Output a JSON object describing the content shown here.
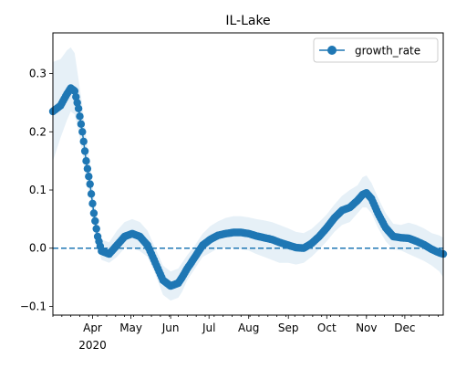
{
  "chart_data": {
    "type": "line",
    "title": "IL-Lake",
    "xlabel": "",
    "ylabel": "",
    "x_range": [
      "2020-03-01",
      "2020-12-31"
    ],
    "ylim": [
      -0.115,
      0.37
    ],
    "x_ticks": [
      {
        "date": "2020-04-01",
        "label": "Apr",
        "sublabel": "2020"
      },
      {
        "date": "2020-05-01",
        "label": "May"
      },
      {
        "date": "2020-06-01",
        "label": "Jun"
      },
      {
        "date": "2020-07-01",
        "label": "Jul"
      },
      {
        "date": "2020-08-01",
        "label": "Aug"
      },
      {
        "date": "2020-09-01",
        "label": "Sep"
      },
      {
        "date": "2020-10-01",
        "label": "Oct"
      },
      {
        "date": "2020-11-01",
        "label": "Nov"
      },
      {
        "date": "2020-12-01",
        "label": "Dec"
      }
    ],
    "y_ticks": [
      {
        "value": 0.3,
        "label": "0.3"
      },
      {
        "value": 0.2,
        "label": "0.2"
      },
      {
        "value": 0.1,
        "label": "0.1"
      },
      {
        "value": 0.0,
        "label": "0.0"
      },
      {
        "value": -0.1,
        "label": "−0.1"
      }
    ],
    "grid": false,
    "legend": {
      "position": "top-right",
      "entries": [
        "growth_rate"
      ]
    },
    "reference_line": {
      "y": 0.0,
      "style": "dashed"
    },
    "colors": {
      "series": "#1f77b4",
      "band": "#1f77b4",
      "reference_line": "#1f77b4"
    },
    "series": [
      {
        "name": "growth_rate",
        "marker": "circle",
        "x": [
          "2020-03-01",
          "2020-03-07",
          "2020-03-12",
          "2020-03-15",
          "2020-03-18",
          "2020-03-21",
          "2020-03-24",
          "2020-03-27",
          "2020-03-30",
          "2020-04-02",
          "2020-04-05",
          "2020-04-08",
          "2020-04-14",
          "2020-04-20",
          "2020-04-26",
          "2020-05-02",
          "2020-05-08",
          "2020-05-14",
          "2020-05-20",
          "2020-05-26",
          "2020-06-01",
          "2020-06-07",
          "2020-06-10",
          "2020-06-14",
          "2020-06-20",
          "2020-06-26",
          "2020-07-02",
          "2020-07-08",
          "2020-07-14",
          "2020-07-20",
          "2020-07-26",
          "2020-08-01",
          "2020-08-07",
          "2020-08-13",
          "2020-08-19",
          "2020-08-25",
          "2020-09-01",
          "2020-09-07",
          "2020-09-13",
          "2020-09-19",
          "2020-09-25",
          "2020-10-01",
          "2020-10-07",
          "2020-10-13",
          "2020-10-19",
          "2020-10-25",
          "2020-10-29",
          "2020-11-01",
          "2020-11-05",
          "2020-11-10",
          "2020-11-16",
          "2020-11-22",
          "2020-11-28",
          "2020-12-04",
          "2020-12-10",
          "2020-12-16",
          "2020-12-22",
          "2020-12-28",
          "2020-12-31"
        ],
        "y": [
          0.235,
          0.245,
          0.265,
          0.275,
          0.27,
          0.24,
          0.2,
          0.15,
          0.11,
          0.06,
          0.02,
          -0.005,
          -0.01,
          0.005,
          0.02,
          0.025,
          0.02,
          0.005,
          -0.025,
          -0.055,
          -0.065,
          -0.06,
          -0.05,
          -0.035,
          -0.015,
          0.005,
          0.015,
          0.022,
          0.025,
          0.027,
          0.027,
          0.025,
          0.021,
          0.018,
          0.015,
          0.01,
          0.005,
          0.001,
          0.0,
          0.008,
          0.02,
          0.035,
          0.052,
          0.065,
          0.07,
          0.082,
          0.092,
          0.095,
          0.085,
          0.06,
          0.035,
          0.02,
          0.018,
          0.017,
          0.012,
          0.006,
          -0.002,
          -0.008,
          -0.01
        ],
        "lower": [
          0.15,
          0.19,
          0.22,
          0.235,
          0.23,
          0.2,
          0.165,
          0.12,
          0.085,
          0.04,
          0.002,
          -0.02,
          -0.025,
          -0.015,
          0.0,
          0.0,
          -0.005,
          -0.015,
          -0.045,
          -0.08,
          -0.09,
          -0.085,
          -0.075,
          -0.055,
          -0.035,
          -0.015,
          -0.008,
          0.0,
          0.0,
          0.0,
          -0.002,
          -0.004,
          -0.01,
          -0.015,
          -0.02,
          -0.025,
          -0.025,
          -0.028,
          -0.025,
          -0.015,
          -0.002,
          0.012,
          0.028,
          0.04,
          0.045,
          0.06,
          0.07,
          0.07,
          0.06,
          0.035,
          0.012,
          -0.002,
          -0.004,
          -0.01,
          -0.016,
          -0.022,
          -0.03,
          -0.04,
          -0.05
        ],
        "upper": [
          0.32,
          0.325,
          0.34,
          0.345,
          0.335,
          0.29,
          0.245,
          0.19,
          0.145,
          0.09,
          0.045,
          0.015,
          0.01,
          0.03,
          0.045,
          0.05,
          0.045,
          0.03,
          0.0,
          -0.03,
          -0.04,
          -0.035,
          -0.025,
          -0.012,
          0.005,
          0.025,
          0.038,
          0.046,
          0.052,
          0.055,
          0.055,
          0.053,
          0.05,
          0.048,
          0.045,
          0.04,
          0.034,
          0.028,
          0.026,
          0.033,
          0.045,
          0.058,
          0.075,
          0.09,
          0.1,
          0.108,
          0.122,
          0.125,
          0.112,
          0.087,
          0.06,
          0.042,
          0.04,
          0.044,
          0.04,
          0.034,
          0.026,
          0.022,
          0.018
        ]
      }
    ]
  }
}
